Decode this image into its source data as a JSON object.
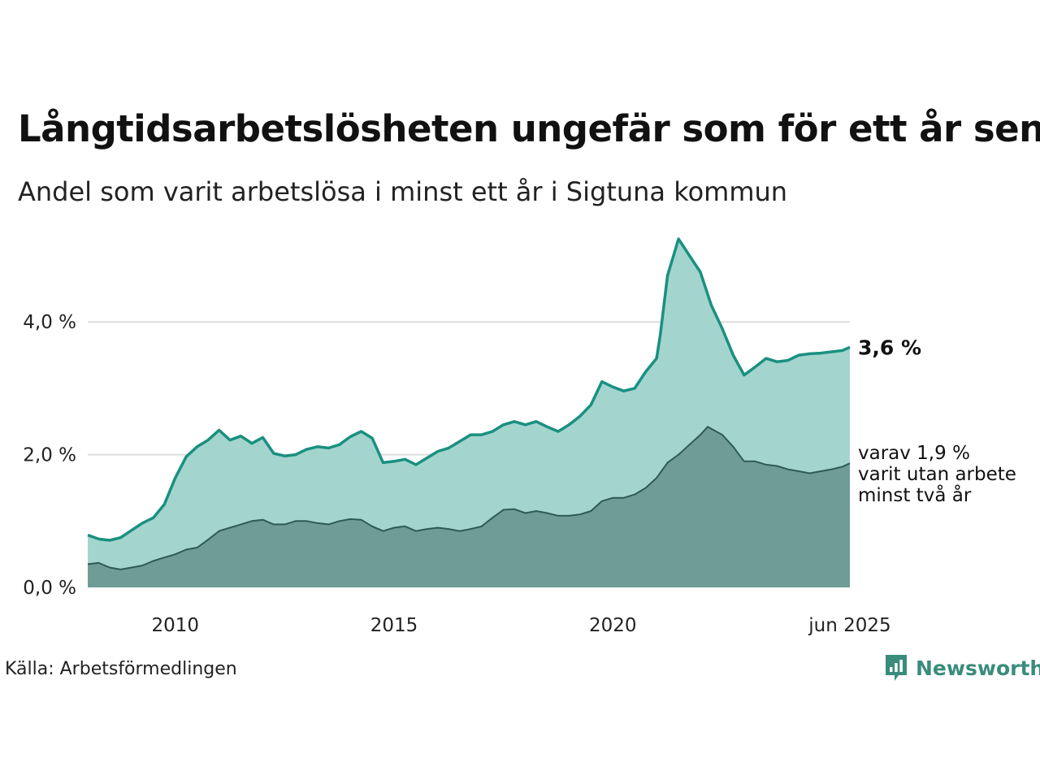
{
  "chart_data": {
    "type": "area",
    "title": "Långtidsarbetslösheten ungefär som för ett år sen",
    "subtitle": "Andel som varit arbetslösa i minst ett år i Sigtuna kommun",
    "source": "Källa: Arbetsförmedlingen",
    "brand": "Newsworthy",
    "x_start": "2008-01",
    "x_end": "2025-06",
    "x_ticks": [
      {
        "date": "2010-01",
        "label": "2010"
      },
      {
        "date": "2015-01",
        "label": "2015"
      },
      {
        "date": "2020-01",
        "label": "2020"
      },
      {
        "date": "2025-06",
        "label": "jun 2025"
      }
    ],
    "ylim": [
      0,
      5.3
    ],
    "y_ticks": [
      {
        "value": 0,
        "label": "0,0 %"
      },
      {
        "value": 2,
        "label": "2,0 %"
      },
      {
        "value": 4,
        "label": "4,0 %"
      }
    ],
    "grid": true,
    "colors": {
      "total_line": "#1a9080",
      "total_fill": "#a3d5ce",
      "sub_line": "#2f5a55",
      "sub_fill": "#6f9d96",
      "grid": "#dddddd"
    },
    "series": [
      {
        "key": "total",
        "end_label": "3,6 %",
        "points": [
          [
            "2008-01",
            0.79
          ],
          [
            "2008-04",
            0.73
          ],
          [
            "2008-07",
            0.71
          ],
          [
            "2008-10",
            0.75
          ],
          [
            "2009-01",
            0.86
          ],
          [
            "2009-04",
            0.97
          ],
          [
            "2009-07",
            1.05
          ],
          [
            "2009-10",
            1.25
          ],
          [
            "2010-01",
            1.65
          ],
          [
            "2010-04",
            1.97
          ],
          [
            "2010-07",
            2.12
          ],
          [
            "2010-10",
            2.22
          ],
          [
            "2011-01",
            2.37
          ],
          [
            "2011-04",
            2.22
          ],
          [
            "2011-07",
            2.28
          ],
          [
            "2011-10",
            2.17
          ],
          [
            "2012-01",
            2.26
          ],
          [
            "2012-04",
            2.02
          ],
          [
            "2012-07",
            1.98
          ],
          [
            "2012-10",
            2.0
          ],
          [
            "2013-01",
            2.08
          ],
          [
            "2013-04",
            2.12
          ],
          [
            "2013-07",
            2.1
          ],
          [
            "2013-10",
            2.15
          ],
          [
            "2014-01",
            2.27
          ],
          [
            "2014-04",
            2.35
          ],
          [
            "2014-07",
            2.25
          ],
          [
            "2014-10",
            1.88
          ],
          [
            "2015-01",
            1.9
          ],
          [
            "2015-04",
            1.93
          ],
          [
            "2015-07",
            1.85
          ],
          [
            "2015-10",
            1.95
          ],
          [
            "2016-01",
            2.05
          ],
          [
            "2016-04",
            2.1
          ],
          [
            "2016-07",
            2.2
          ],
          [
            "2016-10",
            2.3
          ],
          [
            "2017-01",
            2.3
          ],
          [
            "2017-04",
            2.35
          ],
          [
            "2017-07",
            2.45
          ],
          [
            "2017-10",
            2.5
          ],
          [
            "2018-01",
            2.45
          ],
          [
            "2018-04",
            2.5
          ],
          [
            "2018-07",
            2.42
          ],
          [
            "2018-10",
            2.35
          ],
          [
            "2019-01",
            2.45
          ],
          [
            "2019-04",
            2.58
          ],
          [
            "2019-07",
            2.75
          ],
          [
            "2019-10",
            3.1
          ],
          [
            "2020-01",
            3.02
          ],
          [
            "2020-04",
            2.96
          ],
          [
            "2020-07",
            3.0
          ],
          [
            "2020-10",
            3.25
          ],
          [
            "2021-01",
            3.45
          ],
          [
            "2021-02",
            3.8
          ],
          [
            "2021-04",
            4.7
          ],
          [
            "2021-07",
            5.25
          ],
          [
            "2021-10",
            5.0
          ],
          [
            "2022-01",
            4.75
          ],
          [
            "2022-04",
            4.25
          ],
          [
            "2022-07",
            3.9
          ],
          [
            "2022-10",
            3.5
          ],
          [
            "2023-01",
            3.2
          ],
          [
            "2023-04",
            3.32
          ],
          [
            "2023-07",
            3.45
          ],
          [
            "2023-10",
            3.4
          ],
          [
            "2024-01",
            3.42
          ],
          [
            "2024-04",
            3.5
          ],
          [
            "2024-07",
            3.52
          ],
          [
            "2024-10",
            3.53
          ],
          [
            "2025-01",
            3.55
          ],
          [
            "2025-04",
            3.57
          ],
          [
            "2025-06",
            3.62
          ]
        ]
      },
      {
        "key": "two_years",
        "label_lines": [
          "varav 1,9 %",
          "varit utan arbete",
          "minst två år"
        ],
        "points": [
          [
            "2008-01",
            0.35
          ],
          [
            "2008-04",
            0.37
          ],
          [
            "2008-07",
            0.3
          ],
          [
            "2008-10",
            0.27
          ],
          [
            "2009-01",
            0.3
          ],
          [
            "2009-04",
            0.33
          ],
          [
            "2009-07",
            0.4
          ],
          [
            "2009-10",
            0.45
          ],
          [
            "2010-01",
            0.5
          ],
          [
            "2010-04",
            0.57
          ],
          [
            "2010-07",
            0.6
          ],
          [
            "2010-10",
            0.72
          ],
          [
            "2011-01",
            0.85
          ],
          [
            "2011-04",
            0.9
          ],
          [
            "2011-07",
            0.95
          ],
          [
            "2011-10",
            1.0
          ],
          [
            "2012-01",
            1.02
          ],
          [
            "2012-04",
            0.95
          ],
          [
            "2012-07",
            0.95
          ],
          [
            "2012-10",
            1.0
          ],
          [
            "2013-01",
            1.0
          ],
          [
            "2013-04",
            0.97
          ],
          [
            "2013-07",
            0.95
          ],
          [
            "2013-10",
            1.0
          ],
          [
            "2014-01",
            1.03
          ],
          [
            "2014-04",
            1.02
          ],
          [
            "2014-07",
            0.92
          ],
          [
            "2014-10",
            0.85
          ],
          [
            "2015-01",
            0.9
          ],
          [
            "2015-04",
            0.92
          ],
          [
            "2015-07",
            0.85
          ],
          [
            "2015-10",
            0.88
          ],
          [
            "2016-01",
            0.9
          ],
          [
            "2016-04",
            0.88
          ],
          [
            "2016-07",
            0.85
          ],
          [
            "2016-10",
            0.88
          ],
          [
            "2017-01",
            0.92
          ],
          [
            "2017-04",
            1.05
          ],
          [
            "2017-07",
            1.17
          ],
          [
            "2017-10",
            1.18
          ],
          [
            "2018-01",
            1.12
          ],
          [
            "2018-04",
            1.15
          ],
          [
            "2018-07",
            1.12
          ],
          [
            "2018-10",
            1.08
          ],
          [
            "2019-01",
            1.08
          ],
          [
            "2019-04",
            1.1
          ],
          [
            "2019-07",
            1.15
          ],
          [
            "2019-10",
            1.3
          ],
          [
            "2020-01",
            1.35
          ],
          [
            "2020-04",
            1.35
          ],
          [
            "2020-07",
            1.4
          ],
          [
            "2020-10",
            1.5
          ],
          [
            "2021-01",
            1.65
          ],
          [
            "2021-04",
            1.88
          ],
          [
            "2021-07",
            2.0
          ],
          [
            "2021-10",
            2.15
          ],
          [
            "2022-01",
            2.3
          ],
          [
            "2022-03",
            2.42
          ],
          [
            "2022-07",
            2.3
          ],
          [
            "2022-10",
            2.12
          ],
          [
            "2023-01",
            1.9
          ],
          [
            "2023-04",
            1.9
          ],
          [
            "2023-07",
            1.85
          ],
          [
            "2023-10",
            1.83
          ],
          [
            "2024-01",
            1.78
          ],
          [
            "2024-04",
            1.75
          ],
          [
            "2024-07",
            1.72
          ],
          [
            "2024-10",
            1.75
          ],
          [
            "2025-01",
            1.78
          ],
          [
            "2025-04",
            1.82
          ],
          [
            "2025-06",
            1.87
          ]
        ]
      }
    ]
  }
}
